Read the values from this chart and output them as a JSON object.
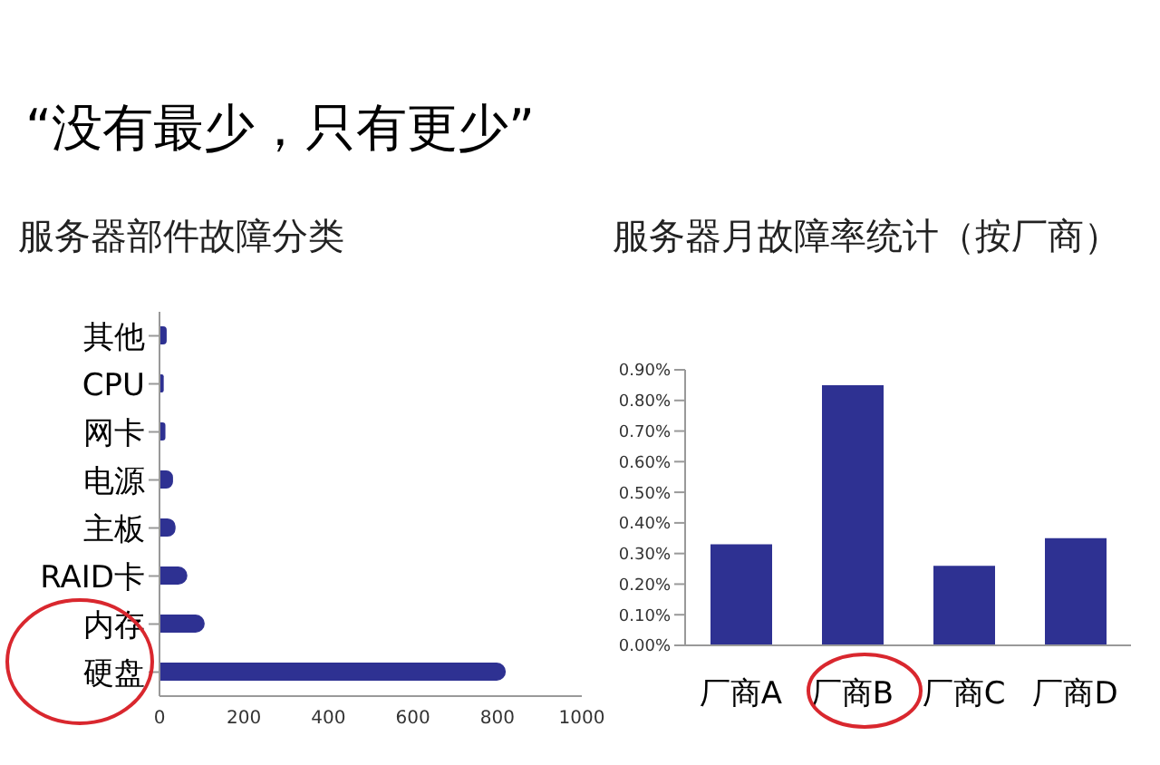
{
  "chart_data": [
    {
      "type": "bar",
      "orientation": "horizontal",
      "title": "“没有最少，只有更少”",
      "subtitle": "服务器部件故障分类",
      "categories": [
        "其他",
        "CPU",
        "网卡",
        "电源",
        "主板",
        "RAID卡",
        "内存",
        "硬盘"
      ],
      "values": [
        17,
        10,
        14,
        32,
        38,
        66,
        107,
        820
      ],
      "color": "#2e3192",
      "xlim": [
        0,
        1000
      ],
      "xticks": [
        0,
        200,
        400,
        600,
        800,
        1000
      ]
    },
    {
      "type": "bar",
      "title": "服务器月故障率统计（按厂商）",
      "categories": [
        "厂商A",
        "厂商B",
        "厂商C",
        "厂商D"
      ],
      "values": [
        0.33,
        0.85,
        0.26,
        0.35
      ],
      "color": "#2e3192",
      "ylim": [
        0,
        0.9
      ],
      "yticks": [
        {
          "value": 0,
          "label": "0.00%"
        },
        {
          "value": 0.1,
          "label": "0.10%"
        },
        {
          "value": 0.2,
          "label": "0.20%"
        },
        {
          "value": 0.3,
          "label": "0.30%"
        },
        {
          "value": 0.4,
          "label": "0.40%"
        },
        {
          "value": 0.5,
          "label": "0.50%"
        },
        {
          "value": 0.6,
          "label": "0.60%"
        },
        {
          "value": 0.7,
          "label": "0.70%"
        },
        {
          "value": 0.8,
          "label": "0.80%"
        },
        {
          "value": 0.9,
          "label": "0.90%"
        }
      ]
    }
  ]
}
